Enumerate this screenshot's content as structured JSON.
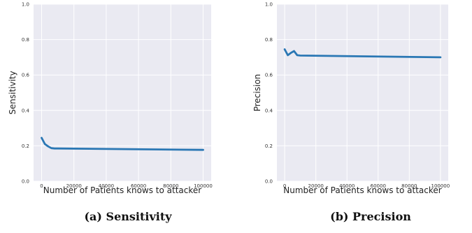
{
  "chart_data": [
    {
      "type": "line",
      "caption": "(a) Sensitivity",
      "xlabel": "Number of Patients knows to attacker",
      "ylabel": "Sensitivity",
      "xlim": [
        -5000,
        105000
      ],
      "ylim": [
        0.0,
        1.0
      ],
      "xticks": [
        0,
        20000,
        40000,
        60000,
        80000,
        100000
      ],
      "yticks": [
        0.0,
        0.2,
        0.4,
        0.6,
        0.8,
        1.0
      ],
      "ytick_labels": [
        "0.0",
        "0.2",
        "0.4",
        "0.6",
        "0.8",
        "1.0"
      ],
      "grid": true,
      "color": "#2a77b4",
      "series": [
        {
          "x": [
            0,
            2000,
            4000,
            6000,
            8000,
            10000,
            100000
          ],
          "y": [
            0.245,
            0.21,
            0.197,
            0.187,
            0.185,
            0.185,
            0.177
          ]
        }
      ]
    },
    {
      "type": "line",
      "caption": "(b) Precision",
      "xlabel": "Number of Patients knows to attacker",
      "ylabel": "Precision",
      "xlim": [
        -5000,
        105000
      ],
      "ylim": [
        0.0,
        1.0
      ],
      "xticks": [
        0,
        20000,
        40000,
        60000,
        80000,
        100000
      ],
      "yticks": [
        0.0,
        0.2,
        0.4,
        0.6,
        0.8,
        1.0
      ],
      "ytick_labels": [
        "0.0",
        "0.2",
        "0.4",
        "0.6",
        "0.8",
        "1.0"
      ],
      "grid": true,
      "color": "#2a77b4",
      "series": [
        {
          "x": [
            0,
            2000,
            4000,
            6000,
            8000,
            10000,
            100000
          ],
          "y": [
            0.745,
            0.712,
            0.725,
            0.735,
            0.712,
            0.71,
            0.7
          ]
        }
      ]
    }
  ]
}
